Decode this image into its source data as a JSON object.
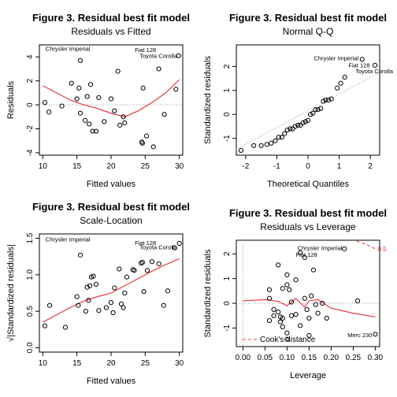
{
  "chart_data": [
    {
      "type": "scatter",
      "title": "Figure 3. Residual best fit model",
      "subtitle": "Residuals vs Fitted",
      "xlabel": "Fitted values",
      "ylabel": "Residuals",
      "xlim": [
        9.5,
        30.5
      ],
      "ylim": [
        -4.2,
        5.0
      ],
      "xticks": [
        10,
        15,
        20,
        25,
        30
      ],
      "yticks": [
        -4,
        -2,
        0,
        2,
        4
      ],
      "ref_line_y": 0,
      "points": [
        [
          10.3,
          0.2
        ],
        [
          10.9,
          -0.6
        ],
        [
          12.8,
          -0.1
        ],
        [
          14.2,
          1.8
        ],
        [
          15.0,
          0.5
        ],
        [
          15.3,
          1.4
        ],
        [
          15.5,
          -0.7
        ],
        [
          15.5,
          3.7
        ],
        [
          16.2,
          -1.3
        ],
        [
          16.5,
          0.7
        ],
        [
          16.8,
          -1.6
        ],
        [
          17.0,
          1.7
        ],
        [
          17.3,
          -2.2
        ],
        [
          17.8,
          -2.2
        ],
        [
          18.2,
          0.6
        ],
        [
          19.0,
          -1.4
        ],
        [
          20.0,
          0.5
        ],
        [
          20.5,
          -0.5
        ],
        [
          21.0,
          2.8
        ],
        [
          21.3,
          -1.7
        ],
        [
          21.8,
          -1.0
        ],
        [
          22.0,
          -1.5
        ],
        [
          24.5,
          -3.1
        ],
        [
          24.6,
          -3.2
        ],
        [
          24.7,
          1.4
        ],
        [
          25.2,
          -2.6
        ],
        [
          26.2,
          -3.5
        ],
        [
          27.0,
          3.0
        ],
        [
          27.8,
          -0.8
        ],
        [
          29.5,
          1.3
        ],
        [
          29.9,
          4.1
        ]
      ],
      "smooth_x": [
        10,
        12,
        14,
        16,
        18,
        20,
        22,
        24,
        26,
        28,
        30
      ],
      "smooth_y": [
        1.6,
        1.0,
        0.4,
        0.0,
        -0.3,
        -0.7,
        -1.0,
        -0.5,
        0.2,
        1.0,
        2.1
      ],
      "labels": [
        {
          "text": "Chrysler Imperial",
          "x": 10.4,
          "y": 4.7,
          "anchor": "start"
        },
        {
          "text": "Fiat 128",
          "x": 26.6,
          "y": 4.6,
          "anchor": "end"
        },
        {
          "text": "Toyota Corolla",
          "x": 29.7,
          "y": 4.1,
          "anchor": "end"
        }
      ]
    },
    {
      "type": "scatter",
      "title": "Figure 3. Residual best fit model",
      "subtitle": "Normal Q-Q",
      "xlabel": "Theoretical Quantiles",
      "ylabel": "Standardized residuals",
      "xlim": [
        -2.3,
        2.3
      ],
      "ylim": [
        -1.7,
        2.9
      ],
      "xticks": [
        -2,
        -1,
        0,
        1,
        2
      ],
      "yticks": [
        -1,
        0,
        1,
        2
      ],
      "ref_line": [
        [
          -2.3,
          -1.45
        ],
        [
          2.3,
          1.75
        ]
      ],
      "points": [
        [
          -2.15,
          -1.5
        ],
        [
          -1.74,
          -1.3
        ],
        [
          -1.5,
          -1.3
        ],
        [
          -1.32,
          -1.25
        ],
        [
          -1.18,
          -1.2
        ],
        [
          -1.05,
          -1.1
        ],
        [
          -0.94,
          -0.95
        ],
        [
          -0.84,
          -0.95
        ],
        [
          -0.75,
          -0.8
        ],
        [
          -0.66,
          -0.65
        ],
        [
          -0.57,
          -0.6
        ],
        [
          -0.49,
          -0.6
        ],
        [
          -0.41,
          -0.5
        ],
        [
          -0.32,
          -0.45
        ],
        [
          -0.24,
          -0.45
        ],
        [
          -0.16,
          -0.35
        ],
        [
          -0.08,
          -0.3
        ],
        [
          0.0,
          -0.25
        ],
        [
          0.08,
          0.0
        ],
        [
          0.16,
          0.05
        ],
        [
          0.24,
          0.2
        ],
        [
          0.32,
          0.2
        ],
        [
          0.41,
          0.25
        ],
        [
          0.49,
          0.55
        ],
        [
          0.57,
          0.6
        ],
        [
          0.66,
          0.6
        ],
        [
          0.75,
          0.65
        ],
        [
          0.94,
          1.1
        ],
        [
          1.05,
          1.3
        ],
        [
          1.18,
          1.55
        ],
        [
          1.74,
          2.3
        ],
        [
          2.15,
          2.05
        ]
      ],
      "labels": [
        {
          "text": "Chrysler Imperial",
          "x": 1.62,
          "y": 2.35,
          "anchor": "end"
        },
        {
          "text": "Fiat 128",
          "x": 1.3,
          "y": 2.07,
          "anchor": "start"
        },
        {
          "text": "Toyota Corolla",
          "x": 1.52,
          "y": 1.82,
          "anchor": "start"
        }
      ]
    },
    {
      "type": "scatter",
      "title": "Figure 3. Residual best fit model",
      "subtitle": "Scale-Location",
      "xlabel": "Fitted values",
      "ylabel": "√|Standardized residuals|",
      "xlim": [
        9.5,
        30.5
      ],
      "ylim": [
        -0.06,
        1.56
      ],
      "xticks": [
        10,
        15,
        20,
        25,
        30
      ],
      "yticks": [
        0.0,
        0.5,
        1.0,
        1.5
      ],
      "points": [
        [
          10.3,
          0.3
        ],
        [
          11.0,
          0.58
        ],
        [
          13.3,
          0.28
        ],
        [
          15.0,
          0.7
        ],
        [
          15.2,
          0.58
        ],
        [
          15.5,
          1.27
        ],
        [
          16.3,
          0.5
        ],
        [
          16.5,
          0.83
        ],
        [
          16.7,
          0.65
        ],
        [
          16.9,
          0.85
        ],
        [
          17.1,
          0.97
        ],
        [
          17.4,
          0.98
        ],
        [
          17.8,
          0.87
        ],
        [
          18.2,
          0.51
        ],
        [
          19.3,
          0.55
        ],
        [
          20.0,
          0.62
        ],
        [
          20.3,
          0.48
        ],
        [
          20.5,
          0.82
        ],
        [
          21.2,
          1.08
        ],
        [
          21.5,
          0.6
        ],
        [
          21.8,
          0.55
        ],
        [
          22.0,
          0.75
        ],
        [
          22.3,
          0.97
        ],
        [
          23.2,
          1.07
        ],
        [
          23.4,
          1.06
        ],
        [
          24.4,
          1.16
        ],
        [
          24.6,
          1.17
        ],
        [
          24.8,
          0.77
        ],
        [
          25.3,
          1.06
        ],
        [
          26.0,
          1.18
        ],
        [
          27.0,
          1.15
        ],
        [
          27.7,
          0.58
        ],
        [
          28.3,
          0.78
        ],
        [
          29.3,
          1.37
        ],
        [
          30.0,
          1.43
        ]
      ],
      "smooth_x": [
        10,
        12,
        14,
        16,
        18,
        20,
        22,
        24,
        26,
        28,
        30
      ],
      "smooth_y": [
        0.35,
        0.45,
        0.55,
        0.64,
        0.7,
        0.75,
        0.85,
        0.95,
        1.05,
        1.14,
        1.22
      ],
      "labels": [
        {
          "text": "Chrysler Imperial",
          "x": 10.4,
          "y": 1.49,
          "anchor": "start"
        },
        {
          "text": "Fiat 128",
          "x": 26.6,
          "y": 1.44,
          "anchor": "end"
        },
        {
          "text": "Toyota Corolla",
          "x": 29.7,
          "y": 1.38,
          "anchor": "end"
        }
      ]
    },
    {
      "type": "scatter",
      "title": "Figure 3. Residual best fit model",
      "subtitle": "Residuals vs Leverage",
      "xlabel": "Leverage",
      "ylabel": "Standardized residuals",
      "xlim": [
        -0.015,
        0.31
      ],
      "ylim": [
        -1.75,
        2.55
      ],
      "xticks": [
        0.0,
        0.05,
        0.1,
        0.15,
        0.2,
        0.25,
        0.3
      ],
      "xtick_labels": [
        "0.00",
        "0.05",
        "0.10",
        "0.15",
        "0.20",
        "0.25",
        "0.30"
      ],
      "yticks": [
        -1,
        0,
        1,
        2
      ],
      "ref_line_y": 0,
      "ref_line_x": 0,
      "points": [
        [
          0.06,
          0.55
        ],
        [
          0.06,
          0.2
        ],
        [
          0.06,
          -0.7
        ],
        [
          0.07,
          -0.25
        ],
        [
          0.07,
          -0.5
        ],
        [
          0.08,
          1.55
        ],
        [
          0.08,
          -0.35
        ],
        [
          0.085,
          -0.55
        ],
        [
          0.085,
          -0.75
        ],
        [
          0.09,
          0.6
        ],
        [
          0.09,
          -0.6
        ],
        [
          0.09,
          -0.95
        ],
        [
          0.1,
          1.15
        ],
        [
          0.1,
          0.75
        ],
        [
          0.1,
          -1.2
        ],
        [
          0.1,
          -1.45
        ],
        [
          0.105,
          0.55
        ],
        [
          0.11,
          0.05
        ],
        [
          0.11,
          -0.5
        ],
        [
          0.12,
          0.95
        ],
        [
          0.12,
          -0.45
        ],
        [
          0.13,
          2.05
        ],
        [
          0.13,
          -0.9
        ],
        [
          0.14,
          1.85
        ],
        [
          0.14,
          0.2
        ],
        [
          0.145,
          -0.25
        ],
        [
          0.15,
          -0.6
        ],
        [
          0.15,
          -1.3
        ],
        [
          0.155,
          0.3
        ],
        [
          0.16,
          1.35
        ],
        [
          0.165,
          -0.05
        ],
        [
          0.17,
          -0.4
        ],
        [
          0.18,
          0.0
        ],
        [
          0.19,
          -0.6
        ],
        [
          0.23,
          2.2
        ],
        [
          0.26,
          0.1
        ],
        [
          0.3,
          -1.25
        ]
      ],
      "smooth_x": [
        0.0,
        0.05,
        0.08,
        0.1,
        0.12,
        0.14,
        0.15,
        0.17,
        0.2,
        0.25,
        0.3
      ],
      "smooth_y": [
        0.1,
        0.15,
        0.08,
        -0.1,
        0.2,
        -0.15,
        0.1,
        0.15,
        -0.2,
        -0.4,
        -0.55
      ],
      "cook_x": [
        0.2,
        0.22,
        0.24,
        0.26,
        0.28,
        0.3
      ],
      "cook_y": [
        2.95,
        2.8,
        2.65,
        2.5,
        2.38,
        2.2
      ],
      "cook_label": "0.5",
      "legend_text": "Cook's distance",
      "legend_position": "bottom-left",
      "labels": [
        {
          "text": "Chrysler Imperial",
          "x": 0.225,
          "y": 2.25,
          "anchor": "end"
        },
        {
          "text": "Fiat 128",
          "x": 0.12,
          "y": 1.98,
          "anchor": "start"
        },
        {
          "text": "Merc 230",
          "x": 0.293,
          "y": -1.28,
          "anchor": "end"
        }
      ]
    }
  ],
  "colors": {
    "point": "#000000",
    "smooth": "#e8393f",
    "reference": "#9a9a9a",
    "axis": "#000000"
  }
}
